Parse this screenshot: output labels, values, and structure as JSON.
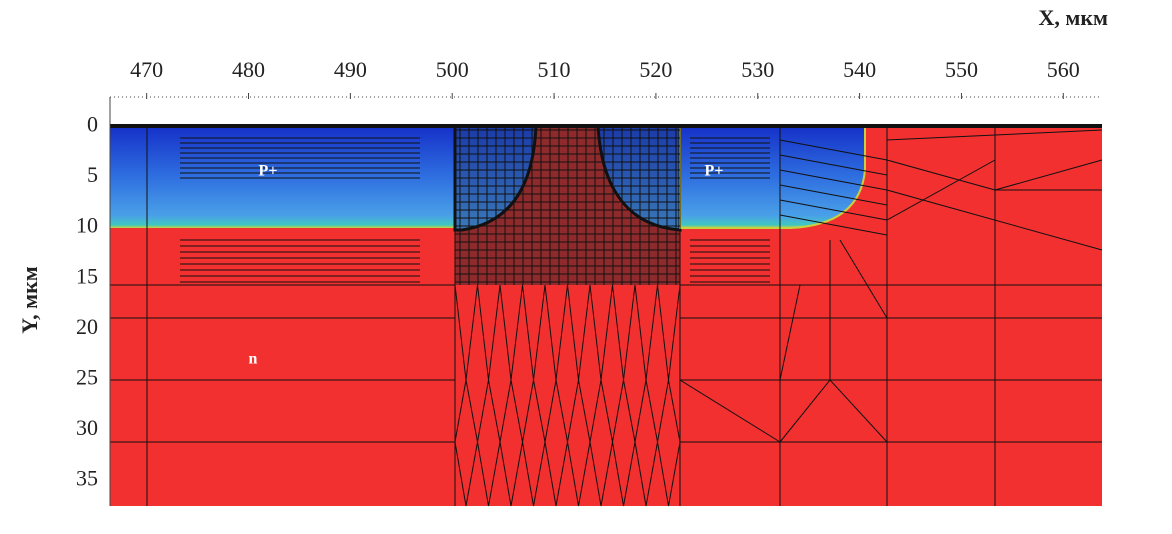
{
  "chart_data": {
    "type": "mesh",
    "xlabel": "X, мкм",
    "ylabel": "Y, мкм",
    "annotations": [
      "P+",
      "P+",
      "n"
    ],
    "xlim": [
      466.4,
      563.8
    ],
    "xticks": [
      470,
      480,
      490,
      500,
      510,
      520,
      530,
      540,
      550,
      560
    ],
    "ylim": [
      -2.9,
      37.5
    ],
    "yticks": [
      0,
      5,
      10,
      15,
      20,
      25,
      30,
      35
    ],
    "y_inverted": true,
    "x_axis_position": "top"
  }
}
